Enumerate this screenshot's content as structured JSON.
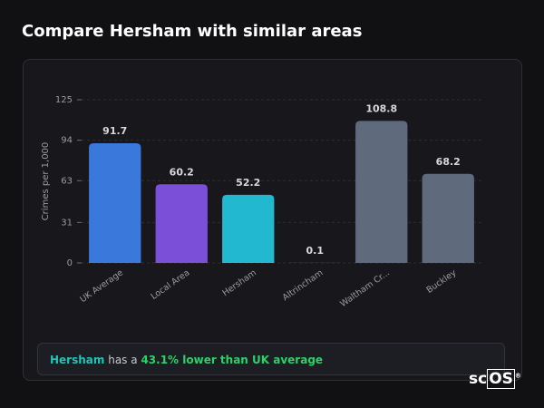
{
  "chart_data": {
    "type": "bar",
    "title": "Compare Hersham with similar areas",
    "y_label": "Crimes per 1,000",
    "categories": [
      "UK Average",
      "Local Area",
      "Hersham",
      "Altrincham",
      "Waltham Cr...",
      "Buckley"
    ],
    "values": [
      91.7,
      60.2,
      52.2,
      0.1,
      108.8,
      68.2
    ],
    "colors": [
      "#3b78dc",
      "#7c4fd8",
      "#22b8d0",
      "#5c6678",
      "#5f6a7d",
      "#5f6a7d"
    ],
    "ylim": [
      0,
      125
    ],
    "yticks": [
      0,
      31,
      63,
      94,
      125
    ],
    "grid": true
  },
  "summary": {
    "area": "Hersham",
    "text": "has a",
    "highlight": "43.1% lower than UK average"
  },
  "logo": {
    "text": "sc",
    "box": "OS",
    "mark": "®"
  }
}
